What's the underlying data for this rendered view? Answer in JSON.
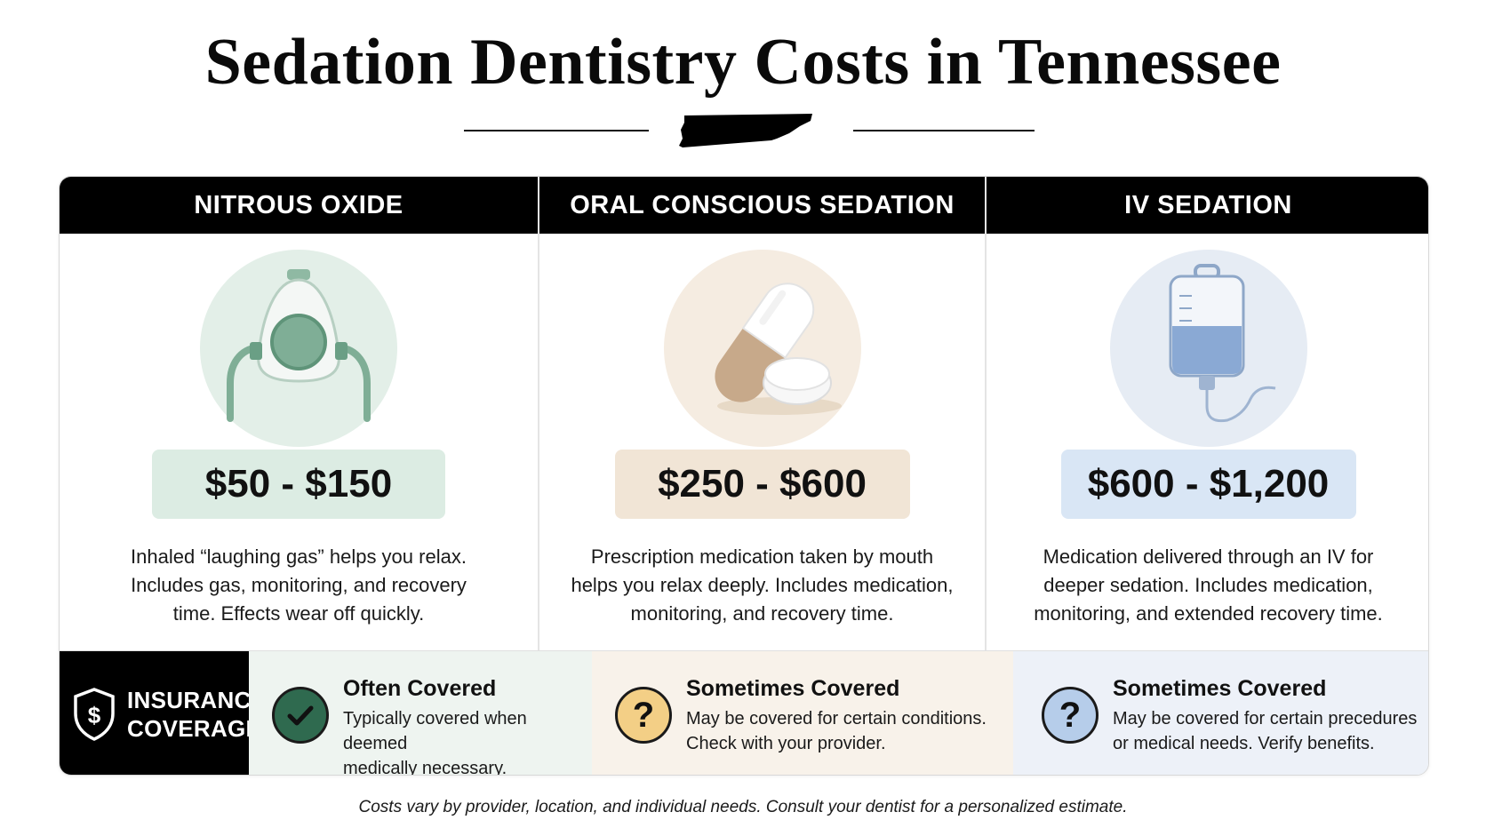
{
  "title": "Sedation Dentistry Costs in Tennessee",
  "columns": [
    {
      "header": "NITROUS OXIDE",
      "icon": "gas-mask-icon",
      "price": "$50 - $150",
      "desc_lines": [
        "Inhaled “laughing gas” helps you relax.",
        "Includes gas, monitoring, and recovery",
        "time. Effects wear off quickly."
      ]
    },
    {
      "header": "ORAL CONSCIOUS SEDATION",
      "icon": "pill-icon",
      "price": "$250 - $600",
      "desc_lines": [
        "Prescription medication taken by mouth",
        "helps you relax deeply. Includes medication,",
        "monitoring, and recovery time."
      ]
    },
    {
      "header": "IV SEDATION",
      "icon": "iv-bag-icon",
      "price": "$600 - $1,200",
      "desc_lines": [
        "Medication delivered through an IV for",
        "deeper sedation. Includes medication,",
        "monitoring, and extended recovery time."
      ]
    }
  ],
  "insurance": {
    "label_lines": [
      "INSURANCE",
      "COVERAGE"
    ],
    "icon": "shield-dollar-icon",
    "items": [
      {
        "status": "Often Covered",
        "icon": "check-icon",
        "color": "#2f6a4f",
        "lines": [
          "Typically covered when deemed",
          "medically necessary."
        ]
      },
      {
        "status": "Sometimes Covered",
        "icon": "question-icon",
        "symbol": "?",
        "color": "#f3cf86",
        "lines": [
          "May be covered for certain conditions.",
          "Check with your provider."
        ]
      },
      {
        "status": "Sometimes Covered",
        "icon": "question-icon",
        "symbol": "?",
        "color": "#b6cdea",
        "lines": [
          "May be covered for certain precedures",
          "or medical needs. Verify benefits."
        ]
      }
    ]
  },
  "footnote": "Costs vary by provider, location, and individual needs. Consult your dentist for a personalized estimate.",
  "colors": {
    "nitrous_accent": "#dcece3",
    "oral_accent": "#f1e5d6",
    "iv_accent": "#d9e6f5",
    "header_bg": "#000000"
  }
}
